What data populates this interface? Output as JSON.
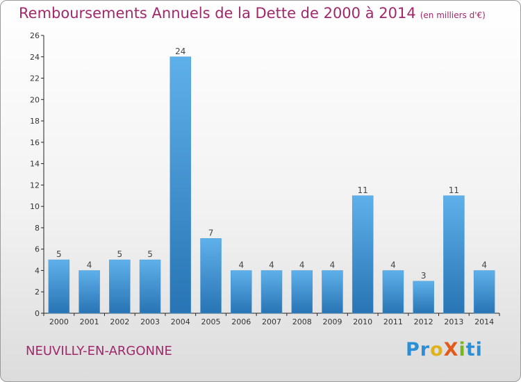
{
  "header": {
    "title": "Remboursements Annuels de la Dette de 2000 à 2014",
    "subtitle": "(en milliers d'€)"
  },
  "footer": {
    "commune": "NEUVILLY-EN-ARGONNE",
    "logo": [
      "Pr",
      "o",
      "X",
      "i",
      "ti"
    ]
  },
  "colors": {
    "title": "#a0286a",
    "bar_top": "#5eb0ea",
    "bar_bottom": "#2874b4",
    "axis": "#222222"
  },
  "chart_data": {
    "type": "bar",
    "title": "Remboursements Annuels de la Dette de 2000 à 2014",
    "subtitle": "(en milliers d'€)",
    "xlabel": "",
    "ylabel": "",
    "categories": [
      "2000",
      "2001",
      "2002",
      "2003",
      "2004",
      "2005",
      "2006",
      "2007",
      "2008",
      "2009",
      "2010",
      "2011",
      "2012",
      "2013",
      "2014"
    ],
    "values": [
      5,
      4,
      5,
      5,
      24,
      7,
      4,
      4,
      4,
      4,
      11,
      4,
      3,
      11,
      4
    ],
    "data_labels": [
      "5",
      "4",
      "5",
      "5",
      "24",
      "7",
      "4",
      "4",
      "4",
      "4",
      "11",
      "4",
      "3",
      "11",
      "4"
    ],
    "ylim": [
      0,
      26
    ],
    "yticks": [
      0,
      2,
      4,
      6,
      8,
      10,
      12,
      14,
      16,
      18,
      20,
      22,
      24,
      26
    ],
    "grid": false,
    "legend": "none"
  }
}
